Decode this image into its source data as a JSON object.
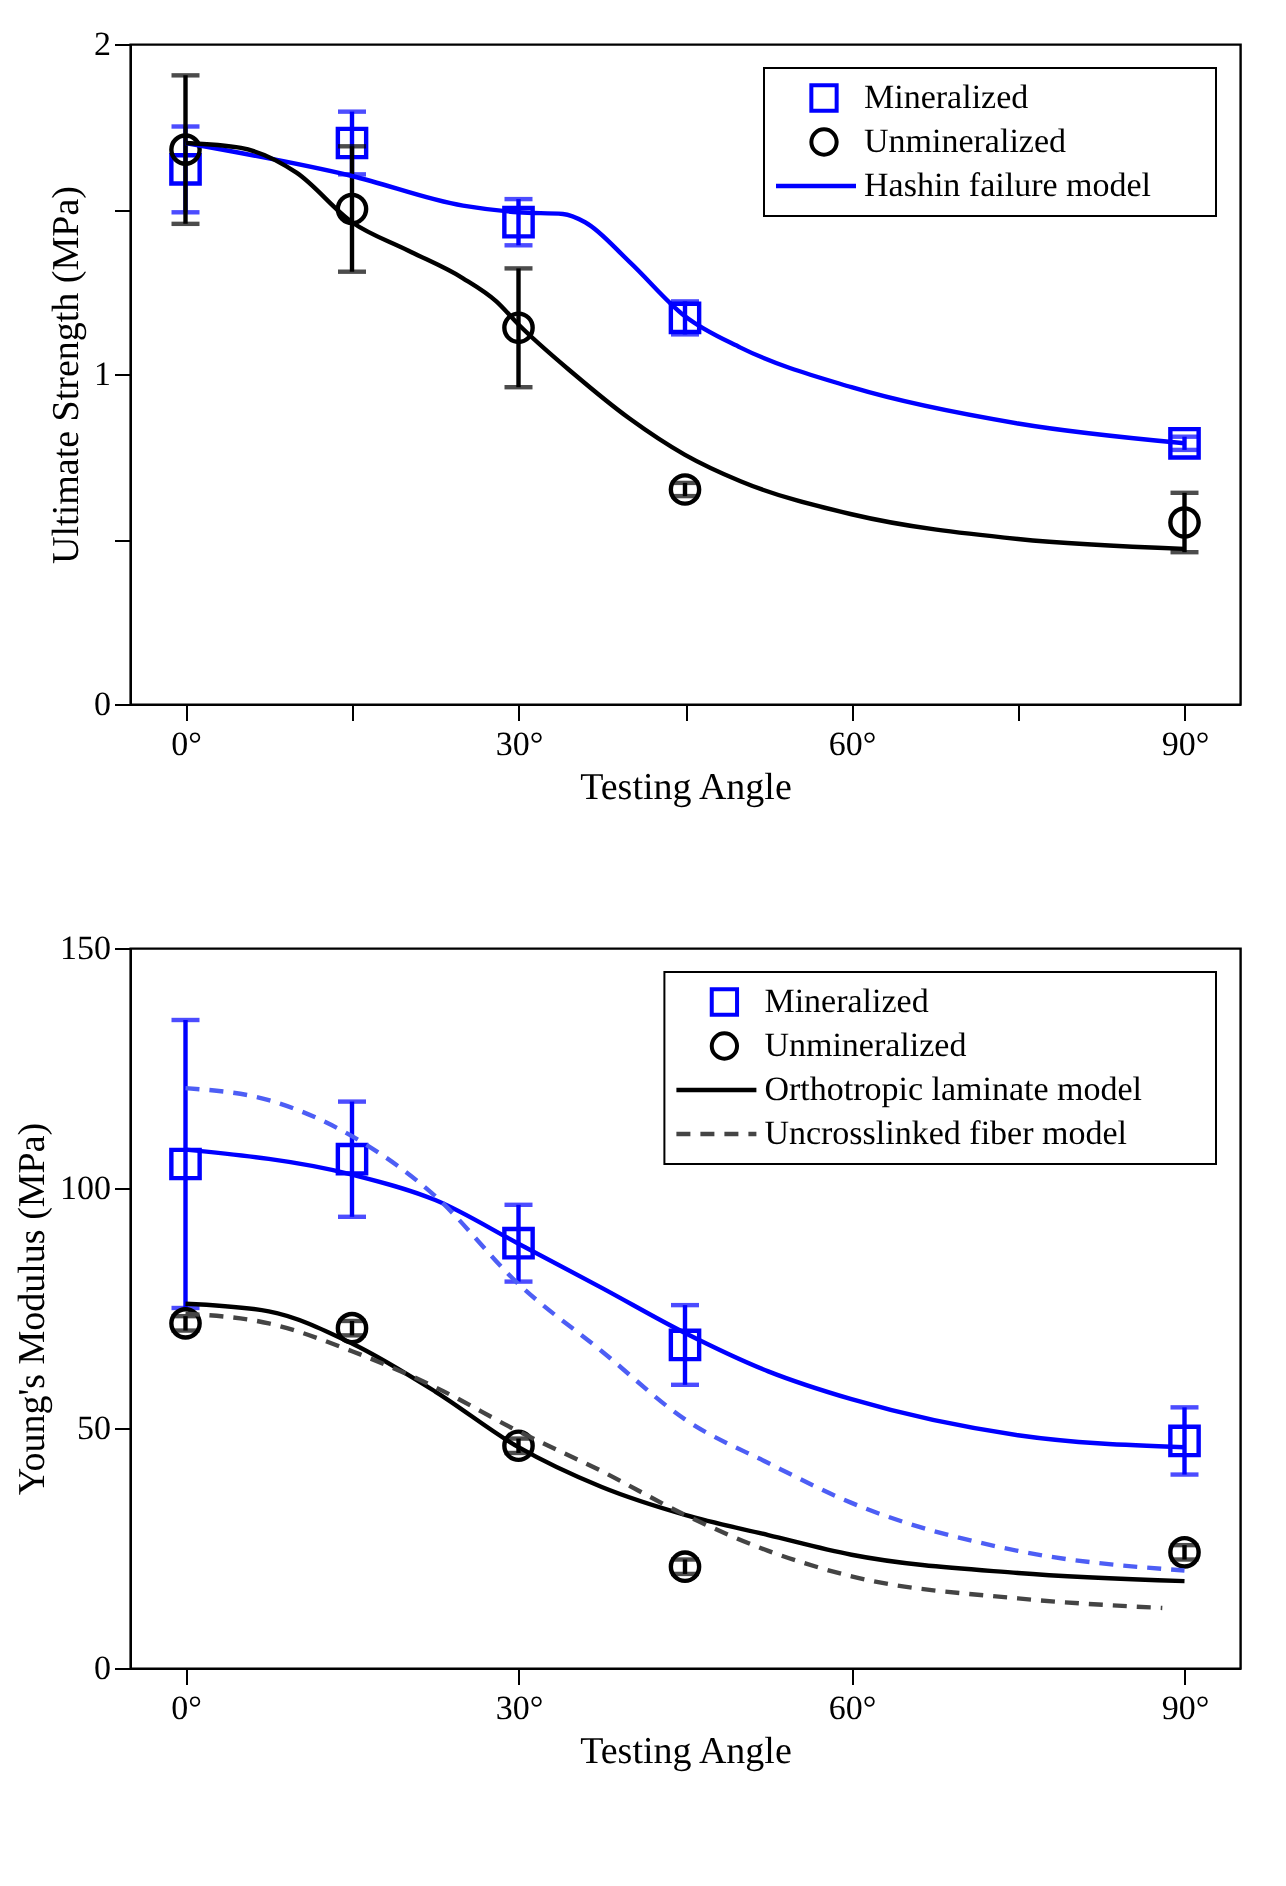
{
  "chart_data": [
    {
      "type": "scatter",
      "xlabel": "Testing Angle",
      "ylabel": "Ultimate Strength (MPa)",
      "xlim": [
        -5,
        95
      ],
      "ylim": [
        0,
        2
      ],
      "xticks": [
        {
          "value": 0,
          "label": "0°"
        },
        {
          "value": 15,
          "label": null
        },
        {
          "value": 30,
          "label": "30°"
        },
        {
          "value": 45,
          "label": null
        },
        {
          "value": 60,
          "label": "60°"
        },
        {
          "value": 75,
          "label": null
        },
        {
          "value": 90,
          "label": "90°"
        }
      ],
      "yticks": [
        0,
        {
          "value": 0.5,
          "label": null
        },
        1,
        {
          "value": 1.5,
          "label": null
        },
        2
      ],
      "grid": false,
      "legend": "top right",
      "series": [
        {
          "name": "Mineralized",
          "type": "scatter",
          "marker": "square",
          "color": "#0000ff",
          "x": [
            0,
            15,
            30,
            45,
            90
          ],
          "values": [
            1.62,
            1.7,
            1.46,
            1.17,
            0.79
          ],
          "errors": [
            0.13,
            0.095,
            0.07,
            0.05,
            0.02
          ]
        },
        {
          "name": "Unmineralized",
          "type": "scatter",
          "marker": "circle",
          "color": "#000000",
          "x": [
            0,
            15,
            30,
            45,
            90
          ],
          "values": [
            1.68,
            1.5,
            1.14,
            0.65,
            0.55
          ],
          "errors": [
            0.225,
            0.19,
            0.18,
            0.02,
            0.09
          ]
        },
        {
          "name": "Hashin failure model",
          "type": "line",
          "line_style": "solid",
          "color": "#0000ff",
          "x": [
            0,
            15,
            25,
            30,
            34,
            36,
            40,
            45,
            50,
            60,
            75,
            90
          ],
          "values": [
            1.7,
            1.6,
            1.51,
            1.49,
            1.485,
            1.46,
            1.34,
            1.175,
            1.08,
            0.96,
            0.85,
            0.79
          ]
        },
        {
          "type": "line",
          "line_style": "solid",
          "color": "#000000",
          "x": [
            0,
            5,
            10,
            15,
            20,
            25,
            28,
            30,
            35,
            40,
            45,
            50,
            60,
            75,
            90
          ],
          "values": [
            1.7,
            1.685,
            1.61,
            1.46,
            1.375,
            1.29,
            1.22,
            1.15,
            1.0,
            0.865,
            0.755,
            0.675,
            0.575,
            0.5,
            0.47
          ]
        }
      ]
    },
    {
      "type": "scatter",
      "xlabel": "Testing Angle",
      "ylabel": "Young's Modulus (MPa)",
      "xlim": [
        -5,
        95
      ],
      "ylim": [
        0,
        150
      ],
      "xticks": [
        {
          "value": 0,
          "label": "0°"
        },
        {
          "value": 30,
          "label": "30°"
        },
        {
          "value": 60,
          "label": "60°"
        },
        {
          "value": 90,
          "label": "90°"
        }
      ],
      "yticks": [
        0,
        50,
        100,
        150
      ],
      "grid": false,
      "legend": "top right",
      "series": [
        {
          "name": "Mineralized",
          "type": "scatter",
          "marker": "square",
          "color": "#0000ff",
          "x": [
            0,
            15,
            30,
            45,
            90
          ],
          "values": [
            105,
            106,
            88.5,
            67.3,
            47.3
          ],
          "errors": [
            30,
            12,
            8,
            8.3,
            7
          ]
        },
        {
          "name": "Unmineralized",
          "type": "scatter",
          "marker": "circle",
          "color": "#000000",
          "x": [
            0,
            15,
            30,
            45,
            90
          ],
          "values": [
            71.8,
            70.8,
            46.3,
            21.1,
            24.1
          ],
          "errors": [
            1.5,
            1.5,
            1.5,
            1.5,
            1.5
          ]
        },
        {
          "type": "line",
          "line_style": "solid",
          "color": "#0000ff",
          "x": [
            0,
            15,
            22.5,
            30,
            37.5,
            45,
            52.5,
            60,
            75,
            90
          ],
          "values": [
            108,
            102.8,
            97.5,
            88.4,
            79.2,
            69.8,
            61.8,
            56,
            48.5,
            46
          ]
        },
        {
          "type": "line",
          "line_style": "dashed",
          "color": "#4d5ef5",
          "x": [
            0,
            7.5,
            15,
            22.5,
            30,
            37.5,
            45,
            52.5,
            60,
            75,
            90
          ],
          "values": [
            120.8,
            118.3,
            110.8,
            98.3,
            80,
            66,
            51.8,
            42.7,
            34.4,
            24.4,
            20.3
          ]
        },
        {
          "name": "Orthotropic laminate model",
          "type": "line",
          "line_style": "solid",
          "color": "#000000",
          "x": [
            0,
            7.5,
            15,
            22.5,
            30,
            37.5,
            45,
            52.5,
            60,
            75,
            90
          ],
          "values": [
            75.9,
            74.3,
            67.6,
            57.6,
            46,
            37.7,
            31.9,
            27.7,
            23.6,
            19.8,
            18.1
          ]
        },
        {
          "name": "Uncrosslinked fiber model",
          "type": "line",
          "line_style": "dashed",
          "color": "#444444",
          "x": [
            0,
            7.5,
            15,
            22.5,
            30,
            37.5,
            45,
            52.5,
            60,
            75,
            88
          ],
          "values": [
            73.8,
            71.8,
            66,
            58.5,
            49.3,
            41,
            31.9,
            24.4,
            19.1,
            14.5,
            12.5
          ]
        }
      ]
    }
  ]
}
